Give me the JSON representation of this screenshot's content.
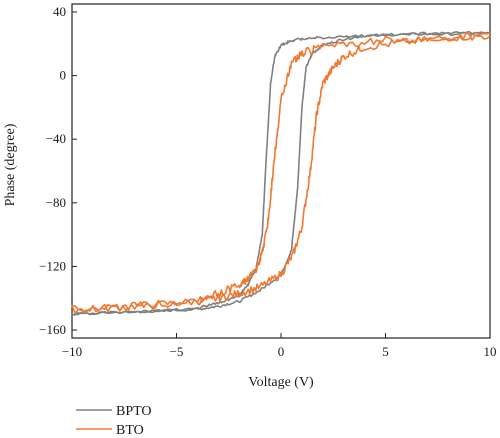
{
  "chart_data": {
    "type": "line",
    "xlabel": "Voltage (V)",
    "ylabel": "Phase (degree)",
    "xlim": [
      -10,
      10
    ],
    "ylim": [
      -165,
      45
    ],
    "xticks": [
      -10,
      -5,
      0,
      5,
      10
    ],
    "xtick_labels": [
      "−10",
      "−5",
      "0",
      "5",
      "10"
    ],
    "yticks": [
      40,
      0,
      -40,
      -80,
      -120,
      -160
    ],
    "ytick_labels": [
      "40",
      "0",
      "−40",
      "−80",
      "−120",
      "−160"
    ],
    "grid": false,
    "legend_position": "bottom-left, below plot",
    "series": [
      {
        "name": "BPTO",
        "color": "#808080",
        "x": [
          10,
          8,
          6,
          4,
          2,
          1,
          0.5,
          0,
          -0.3,
          -0.5,
          -0.7,
          -0.9,
          -1.2,
          -1.6,
          -2,
          -3,
          -4,
          -6,
          -8,
          -10,
          -8,
          -6,
          -4,
          -3,
          -2,
          -1,
          0,
          0.5,
          0.8,
          1,
          1.2,
          1.5,
          2,
          3,
          4,
          6,
          8,
          10
        ],
        "y": [
          27,
          27,
          26,
          25,
          24,
          23,
          22,
          19,
          12,
          -5,
          -50,
          -100,
          -122,
          -132,
          -138,
          -143,
          -146,
          -148,
          -149,
          -150,
          -149,
          -148,
          -147,
          -145,
          -142,
          -135,
          -125,
          -110,
          -70,
          -20,
          5,
          14,
          19,
          23,
          25,
          26,
          26,
          27
        ]
      },
      {
        "name": "BTO",
        "color": "#f07830",
        "x": [
          10,
          8,
          6,
          4,
          2,
          1,
          0.5,
          0,
          -0.3,
          -0.6,
          -0.9,
          -1.2,
          -1.6,
          -2,
          -3,
          -4,
          -6,
          -8,
          -10,
          -8,
          -6,
          -4,
          -3,
          -2,
          -1,
          0,
          0.6,
          1,
          1.4,
          1.7,
          2,
          2.5,
          3,
          4,
          6,
          8,
          10
        ],
        "y": [
          25,
          24,
          23,
          21,
          18,
          14,
          8,
          -15,
          -50,
          -90,
          -112,
          -122,
          -128,
          -132,
          -137,
          -141,
          -144,
          -146,
          -147,
          -146,
          -144,
          -142,
          -140,
          -137,
          -133,
          -125,
          -112,
          -95,
          -60,
          -25,
          -5,
          5,
          12,
          18,
          21,
          24,
          25
        ]
      }
    ]
  }
}
